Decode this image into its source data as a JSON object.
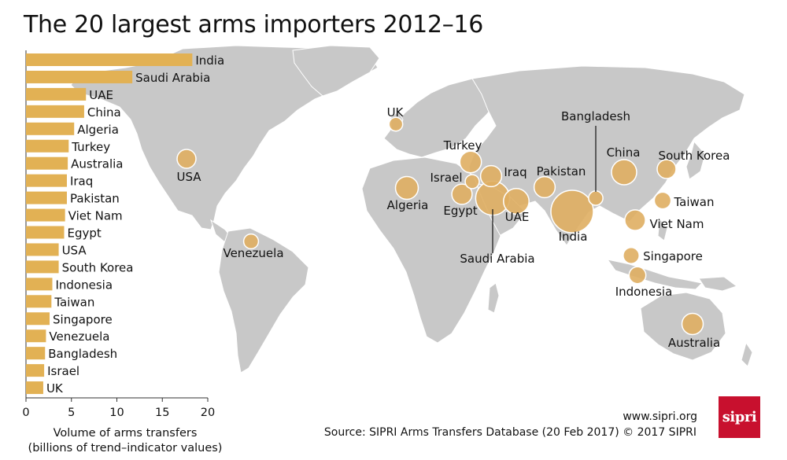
{
  "title": "The 20 largest arms importers 2012–16",
  "xlabel_line1": "Volume of arms transfers",
  "xlabel_line2": "(billions of trend–indicator values)",
  "website": "www.sipri.org",
  "source": "Source: SIPRI Arms Transfers Database (20 Feb 2017)   © 2017 SIPRI",
  "logo_text": "sipri",
  "colors": {
    "bar": "#e2b154",
    "bubble": "#dfae62",
    "bubble_stroke": "#ffffff",
    "land": "#c8c8c8",
    "water": "#ffffff",
    "logo": "#c8102e"
  },
  "chart_data": {
    "type": "bar",
    "orientation": "horizontal",
    "categories": [
      "India",
      "Saudi Arabia",
      "UAE",
      "China",
      "Algeria",
      "Turkey",
      "Australia",
      "Iraq",
      "Pakistan",
      "Viet Nam",
      "Egypt",
      "USA",
      "South Korea",
      "Indonesia",
      "Taiwan",
      "Singapore",
      "Venezuela",
      "Bangladesh",
      "Israel",
      "UK"
    ],
    "values": [
      18.3,
      11.7,
      6.6,
      6.4,
      5.3,
      4.7,
      4.6,
      4.5,
      4.5,
      4.3,
      4.2,
      3.6,
      3.6,
      2.9,
      2.8,
      2.6,
      2.2,
      2.1,
      2.0,
      1.9
    ],
    "xlim": [
      0,
      20
    ],
    "xticks": [
      0,
      5,
      10,
      15,
      20
    ],
    "grid": false,
    "map_labels": [
      "UK",
      "Bangladesh",
      "Turkey",
      "China",
      "South Korea",
      "USA",
      "Israel",
      "Iraq",
      "Pakistan",
      "Algeria",
      "Taiwan",
      "Egypt",
      "UAE",
      "Viet Nam",
      "India",
      "Venezuela",
      "Saudi Arabia",
      "Singapore",
      "Indonesia",
      "Australia"
    ]
  }
}
